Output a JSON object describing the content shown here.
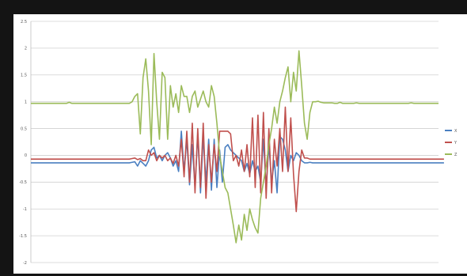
{
  "chart_data": {
    "type": "line",
    "title": "",
    "xlabel": "",
    "ylabel": "",
    "ylim": [
      -2,
      2.5
    ],
    "yticks": [
      2.5,
      2,
      1.5,
      1,
      0.5,
      0,
      -0.5,
      -1,
      -1.5,
      -2
    ],
    "ytick_labels": [
      "2.5",
      "2",
      "1.5",
      "1",
      "0.5",
      "0",
      "-0.5",
      "-1",
      "-1.5",
      "-2"
    ],
    "grid": true,
    "legend_position": "right",
    "x_count": 150,
    "series": [
      {
        "name": "X",
        "color": "#4a7fc1",
        "values": [
          -0.14,
          -0.14,
          -0.14,
          -0.14,
          -0.14,
          -0.14,
          -0.14,
          -0.14,
          -0.14,
          -0.14,
          -0.14,
          -0.14,
          -0.14,
          -0.14,
          -0.14,
          -0.14,
          -0.14,
          -0.14,
          -0.14,
          -0.14,
          -0.14,
          -0.14,
          -0.14,
          -0.14,
          -0.14,
          -0.14,
          -0.14,
          -0.14,
          -0.14,
          -0.14,
          -0.14,
          -0.14,
          -0.14,
          -0.14,
          -0.14,
          -0.14,
          -0.14,
          -0.13,
          -0.12,
          -0.2,
          -0.1,
          -0.15,
          -0.2,
          -0.1,
          0.1,
          0.15,
          -0.05,
          0.0,
          -0.1,
          0.0,
          0.05,
          -0.05,
          -0.2,
          -0.1,
          -0.3,
          0.45,
          -0.3,
          0.3,
          -0.55,
          0.2,
          -0.6,
          0.4,
          -0.7,
          0.35,
          -0.5,
          0.3,
          -0.65,
          0.3,
          -0.6,
          0.1,
          -0.5,
          0.15,
          0.2,
          0.1,
          0.05,
          0.0,
          -0.05,
          -0.1,
          -0.3,
          -0.15,
          -0.35,
          -0.1,
          -0.3,
          -0.2,
          -0.5,
          0.3,
          -0.6,
          0.2,
          -0.5,
          -0.1,
          -0.7,
          0.35,
          0.3,
          0.1,
          -0.3,
          0.0,
          -0.1,
          0.05,
          0.0,
          -0.1,
          -0.14,
          -0.14,
          -0.13,
          -0.14,
          -0.14,
          -0.14,
          -0.14,
          -0.14,
          -0.14,
          -0.14,
          -0.14,
          -0.14,
          -0.14,
          -0.14,
          -0.14,
          -0.14,
          -0.14,
          -0.14,
          -0.14,
          -0.14,
          -0.14,
          -0.14,
          -0.14,
          -0.14,
          -0.14,
          -0.14,
          -0.14,
          -0.14,
          -0.14,
          -0.14,
          -0.14,
          -0.14,
          -0.14,
          -0.14,
          -0.14,
          -0.14,
          -0.14,
          -0.14,
          -0.14,
          -0.14,
          -0.14,
          -0.14,
          -0.14,
          -0.14,
          -0.14,
          -0.14,
          -0.14,
          -0.14,
          -0.14,
          -0.14,
          -0.14,
          -0.14
        ]
      },
      {
        "name": "Y",
        "color": "#c0504d",
        "values": [
          -0.07,
          -0.07,
          -0.07,
          -0.07,
          -0.07,
          -0.07,
          -0.07,
          -0.07,
          -0.07,
          -0.07,
          -0.07,
          -0.07,
          -0.07,
          -0.07,
          -0.07,
          -0.07,
          -0.07,
          -0.07,
          -0.07,
          -0.07,
          -0.07,
          -0.07,
          -0.07,
          -0.07,
          -0.07,
          -0.07,
          -0.07,
          -0.07,
          -0.07,
          -0.07,
          -0.07,
          -0.07,
          -0.07,
          -0.07,
          -0.07,
          -0.07,
          -0.07,
          -0.06,
          -0.05,
          -0.08,
          -0.06,
          -0.1,
          -0.1,
          0.1,
          0.0,
          0.05,
          -0.1,
          0.0,
          -0.05,
          0.0,
          -0.1,
          -0.05,
          -0.15,
          0.0,
          -0.2,
          0.3,
          -0.4,
          0.45,
          -0.5,
          0.6,
          -0.7,
          0.5,
          -0.6,
          0.6,
          -0.8,
          0.2,
          -0.5,
          0.2,
          -0.3,
          0.45,
          0.45,
          0.45,
          0.45,
          0.4,
          -0.1,
          0.0,
          -0.2,
          0.1,
          -0.3,
          0.2,
          -0.4,
          0.7,
          -0.6,
          0.75,
          -0.7,
          0.8,
          -0.8,
          0.5,
          -0.7,
          0.3,
          -0.2,
          0.5,
          -0.3,
          0.9,
          -0.3,
          0.7,
          -0.35,
          -1.05,
          -0.3,
          0.1,
          -0.05,
          -0.05,
          -0.07,
          -0.07,
          -0.07,
          -0.07,
          -0.07,
          -0.07,
          -0.07,
          -0.07,
          -0.07,
          -0.07,
          -0.07,
          -0.07,
          -0.07,
          -0.07,
          -0.07,
          -0.07,
          -0.07,
          -0.07,
          -0.07,
          -0.07,
          -0.07,
          -0.07,
          -0.07,
          -0.07,
          -0.07,
          -0.07,
          -0.07,
          -0.07,
          -0.07,
          -0.07,
          -0.07,
          -0.07,
          -0.07,
          -0.07,
          -0.07,
          -0.07,
          -0.07,
          -0.07,
          -0.07,
          -0.07,
          -0.07,
          -0.07,
          -0.07,
          -0.07,
          -0.07,
          -0.07,
          -0.07,
          -0.07,
          -0.07,
          -0.07
        ]
      },
      {
        "name": "Z",
        "color": "#9bbb59",
        "values": [
          0.97,
          0.97,
          0.97,
          0.97,
          0.97,
          0.97,
          0.97,
          0.97,
          0.97,
          0.97,
          0.97,
          0.97,
          0.97,
          0.97,
          0.99,
          0.97,
          0.97,
          0.97,
          0.97,
          0.97,
          0.97,
          0.97,
          0.97,
          0.97,
          0.97,
          0.97,
          0.97,
          0.97,
          0.97,
          0.97,
          0.97,
          0.97,
          0.97,
          0.97,
          0.97,
          0.97,
          0.97,
          1.0,
          1.1,
          1.15,
          0.4,
          1.45,
          1.8,
          1.2,
          0.2,
          1.9,
          1.0,
          0.3,
          1.55,
          1.45,
          0.3,
          1.3,
          0.9,
          1.15,
          0.8,
          1.3,
          1.1,
          1.1,
          0.8,
          1.1,
          1.2,
          0.9,
          1.05,
          1.2,
          1.0,
          0.9,
          1.3,
          1.1,
          0.6,
          0.0,
          -0.3,
          -0.6,
          -0.7,
          -1.0,
          -1.3,
          -1.63,
          -1.3,
          -1.58,
          -1.1,
          -1.4,
          -1.0,
          -1.2,
          -1.35,
          -1.45,
          -0.8,
          -0.5,
          -0.2,
          0.2,
          0.5,
          0.9,
          0.6,
          1.0,
          1.2,
          1.45,
          1.65,
          1.0,
          1.55,
          1.2,
          1.95,
          1.3,
          0.6,
          0.3,
          0.8,
          1.0,
          1.0,
          1.01,
          0.99,
          0.98,
          0.98,
          0.98,
          0.98,
          0.97,
          0.97,
          0.99,
          0.97,
          0.97,
          0.97,
          0.97,
          0.97,
          0.98,
          0.97,
          0.97,
          0.97,
          0.97,
          0.97,
          0.97,
          0.97,
          0.97,
          0.97,
          0.97,
          0.97,
          0.97,
          0.97,
          0.97,
          0.97,
          0.97,
          0.97,
          0.97,
          0.97,
          0.98,
          0.97,
          0.97,
          0.97,
          0.97,
          0.97,
          0.97,
          0.97,
          0.97,
          0.97,
          0.97
        ]
      }
    ]
  },
  "colors": {
    "frame_background": "#141414",
    "plot_background": "#ffffff",
    "gridline": "#d0d0d0"
  }
}
